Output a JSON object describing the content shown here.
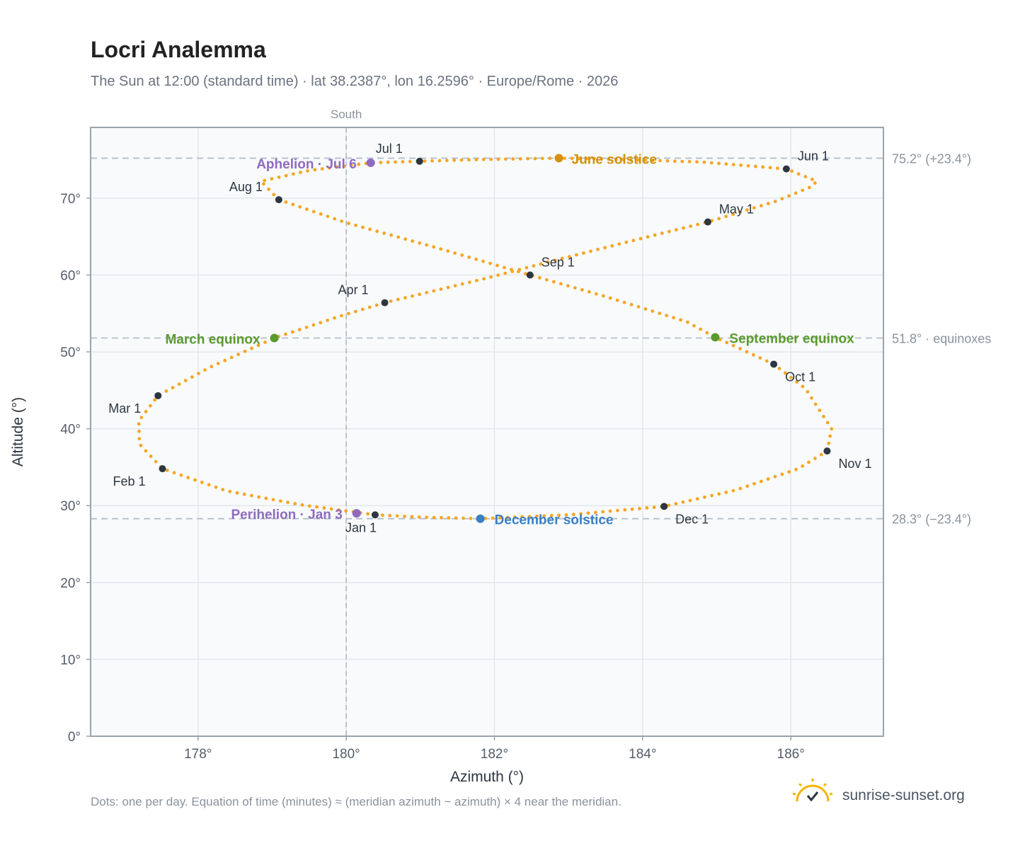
{
  "header": {
    "title": "Locri Analemma",
    "subtitle": "The Sun at 12:00 (standard time) · lat 38.2387°, lon 16.2596° · Europe/Rome · 2026"
  },
  "footer": {
    "note": "Dots: one per day. Equation of time (minutes) ≈ (meridian azimuth − azimuth) × 4 near the meridian.",
    "brand": "sunrise-sunset.org",
    "brand_icon": "sun-checkmark-icon"
  },
  "colors": {
    "path": "#f5a623",
    "month_marker": "#2d3640",
    "solstice_june": "#d4910c",
    "solstice_december": "#3b7fc4",
    "equinox": "#5a9a2e",
    "perihelion_aphelion": "#8e6bbf",
    "grid": "#e3e7ec",
    "frame": "#9aa3ae",
    "plot_bg": "#f8fafc",
    "reference_line": "#b5bfca"
  },
  "chart_data": {
    "type": "scatter",
    "title": "Locri Analemma",
    "xlabel": "Azimuth (°)",
    "ylabel": "Altitude (°)",
    "xlim": [
      176.55,
      187.25
    ],
    "ylim": [
      0,
      79.2
    ],
    "xticks": [
      178,
      180,
      182,
      184,
      186
    ],
    "yticks": [
      0,
      10,
      20,
      30,
      40,
      50,
      60,
      70
    ],
    "grid": true,
    "meridian": {
      "azimuth": 180,
      "label": "South"
    },
    "reference_lines": [
      {
        "altitude": 75.2,
        "label": "75.2° (+23.4°)"
      },
      {
        "altitude": 51.8,
        "label": "51.8° · equinoxes"
      },
      {
        "altitude": 28.3,
        "label": "28.3° (−23.4°)"
      }
    ],
    "month_markers": [
      {
        "label": "Jan 1",
        "az": 180.39,
        "alt": 28.8
      },
      {
        "label": "Feb 1",
        "az": 177.52,
        "alt": 34.8
      },
      {
        "label": "Mar 1",
        "az": 177.46,
        "alt": 44.3
      },
      {
        "label": "Apr 1",
        "az": 180.52,
        "alt": 56.4
      },
      {
        "label": "May 1",
        "az": 184.88,
        "alt": 66.9
      },
      {
        "label": "Jun 1",
        "az": 185.94,
        "alt": 73.8
      },
      {
        "label": "Jul 1",
        "az": 180.99,
        "alt": 74.8
      },
      {
        "label": "Aug 1",
        "az": 179.09,
        "alt": 69.8
      },
      {
        "label": "Sep 1",
        "az": 182.48,
        "alt": 60.0
      },
      {
        "label": "Oct 1",
        "az": 185.77,
        "alt": 48.4
      },
      {
        "label": "Nov 1",
        "az": 186.49,
        "alt": 37.1
      },
      {
        "label": "Dec 1",
        "az": 184.29,
        "alt": 29.9
      }
    ],
    "events": [
      {
        "label": "June solstice",
        "az": 182.87,
        "alt": 75.2,
        "kind": "solstice_june"
      },
      {
        "label": "December solstice",
        "az": 181.81,
        "alt": 28.3,
        "kind": "solstice_december"
      },
      {
        "label": "March equinox",
        "az": 179.03,
        "alt": 51.8,
        "kind": "equinox"
      },
      {
        "label": "September equinox",
        "az": 184.98,
        "alt": 51.9,
        "kind": "equinox"
      },
      {
        "label": "Perihelion · Jan 3",
        "az": 180.14,
        "alt": 29.0,
        "kind": "perihelion_aphelion"
      },
      {
        "label": "Aphelion · Jul 6",
        "az": 180.33,
        "alt": 74.6,
        "kind": "perihelion_aphelion"
      }
    ],
    "path": [
      [
        180.39,
        28.8
      ],
      [
        179.39,
        30.1
      ],
      [
        178.39,
        31.9
      ],
      [
        177.52,
        34.8
      ],
      [
        177.21,
        38.0
      ],
      [
        177.2,
        41.0
      ],
      [
        177.46,
        44.3
      ],
      [
        178.16,
        48.0
      ],
      [
        179.03,
        51.8
      ],
      [
        179.9,
        54.6
      ],
      [
        180.52,
        56.4
      ],
      [
        181.9,
        59.6
      ],
      [
        182.85,
        62.0
      ],
      [
        184.0,
        64.8
      ],
      [
        184.88,
        66.9
      ],
      [
        185.8,
        69.6
      ],
      [
        186.28,
        71.5
      ],
      [
        186.35,
        72.2
      ],
      [
        185.94,
        73.8
      ],
      [
        184.8,
        74.7
      ],
      [
        183.5,
        75.1
      ],
      [
        182.87,
        75.2
      ],
      [
        181.7,
        75.0
      ],
      [
        180.99,
        74.8
      ],
      [
        180.33,
        74.6
      ],
      [
        179.5,
        73.6
      ],
      [
        178.85,
        72.2
      ],
      [
        179.09,
        69.8
      ],
      [
        180.0,
        66.8
      ],
      [
        181.2,
        63.6
      ],
      [
        182.48,
        60.0
      ],
      [
        183.5,
        57.2
      ],
      [
        184.6,
        53.9
      ],
      [
        184.98,
        51.9
      ],
      [
        185.77,
        48.4
      ],
      [
        186.2,
        45.2
      ],
      [
        186.55,
        40.0
      ],
      [
        186.49,
        37.1
      ],
      [
        186.1,
        34.8
      ],
      [
        185.25,
        32.0
      ],
      [
        184.29,
        29.9
      ],
      [
        183.0,
        28.8
      ],
      [
        181.81,
        28.3
      ],
      [
        181.0,
        28.5
      ],
      [
        180.39,
        28.8
      ]
    ]
  }
}
